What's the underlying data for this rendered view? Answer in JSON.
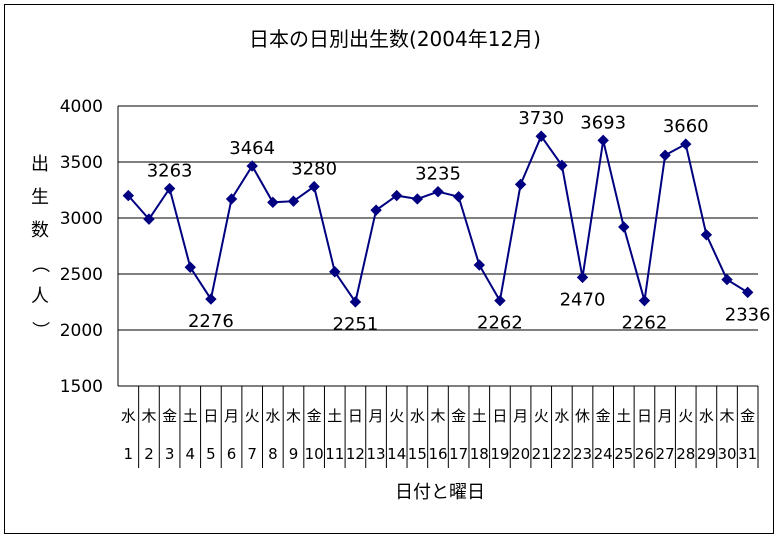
{
  "chart_data": {
    "type": "line",
    "title": "日本の日別出生数(2004年12月)",
    "xlabel": "日付と曜日",
    "ylabel": "出生数（人）",
    "ylim": [
      1500,
      4000
    ],
    "yticks": [
      1500,
      2000,
      2500,
      3000,
      3500,
      4000
    ],
    "grid": true,
    "legend": "none",
    "color": "#000080",
    "days": [
      1,
      2,
      3,
      4,
      5,
      6,
      7,
      8,
      9,
      10,
      11,
      12,
      13,
      14,
      15,
      16,
      17,
      18,
      19,
      20,
      21,
      22,
      23,
      24,
      25,
      26,
      27,
      28,
      29,
      30,
      31
    ],
    "weekdays": [
      "水",
      "木",
      "金",
      "土",
      "日",
      "月",
      "火",
      "水",
      "木",
      "金",
      "土",
      "日",
      "月",
      "火",
      "水",
      "木",
      "金",
      "土",
      "日",
      "月",
      "火",
      "水",
      "休",
      "金",
      "土",
      "日",
      "月",
      "火",
      "水",
      "木",
      "金"
    ],
    "values": [
      3200,
      2990,
      3263,
      2560,
      2276,
      3170,
      3464,
      3140,
      3150,
      3280,
      2520,
      2251,
      3070,
      3200,
      3170,
      3235,
      3190,
      2580,
      2262,
      3300,
      3730,
      3470,
      2470,
      3693,
      2920,
      2262,
      3560,
      3660,
      2850,
      2450,
      2336
    ],
    "data_labels": [
      {
        "index": 2,
        "text": "3263",
        "pos": "above"
      },
      {
        "index": 4,
        "text": "2276",
        "pos": "below"
      },
      {
        "index": 6,
        "text": "3464",
        "pos": "above"
      },
      {
        "index": 9,
        "text": "3280",
        "pos": "above"
      },
      {
        "index": 11,
        "text": "2251",
        "pos": "below"
      },
      {
        "index": 15,
        "text": "3235",
        "pos": "above"
      },
      {
        "index": 18,
        "text": "2262",
        "pos": "below"
      },
      {
        "index": 20,
        "text": "3730",
        "pos": "above"
      },
      {
        "index": 22,
        "text": "2470",
        "pos": "below"
      },
      {
        "index": 23,
        "text": "3693",
        "pos": "above"
      },
      {
        "index": 25,
        "text": "2262",
        "pos": "below"
      },
      {
        "index": 27,
        "text": "3660",
        "pos": "above"
      },
      {
        "index": 30,
        "text": "2336",
        "pos": "below"
      }
    ]
  }
}
